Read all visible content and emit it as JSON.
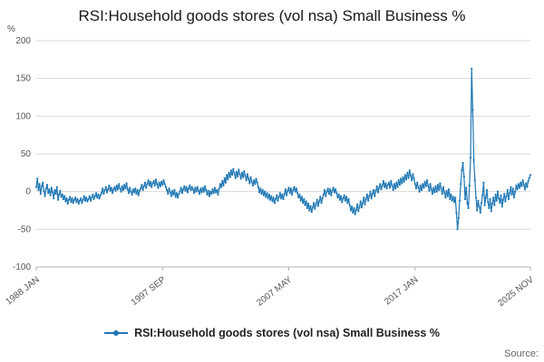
{
  "title": "RSI:Household goods stores (vol nsa) Small Business %",
  "unit_label": "%",
  "source_label": "Source:",
  "legend": {
    "label": "RSI:Household goods stores (vol nsa) Small Business %"
  },
  "colors": {
    "line": "#1f77b4",
    "grid": "#d9d9d9",
    "axis": "#b3b3b3",
    "tick_text": "#555555"
  },
  "chart_data": {
    "type": "line",
    "title": "RSI:Household goods stores (vol nsa) Small Business %",
    "xlabel": "",
    "ylabel": "%",
    "ylim": [
      -100,
      200
    ],
    "yticks": [
      -100,
      -50,
      0,
      50,
      100,
      150,
      200
    ],
    "grid": "horizontal",
    "legend_position": "bottom",
    "frequency": "monthly",
    "x_start": "1988 JAN",
    "x_end": "2025 NOV",
    "xticks": [
      {
        "index": 0,
        "label": "1988 JAN"
      },
      {
        "index": 116,
        "label": "1997 SEP"
      },
      {
        "index": 232,
        "label": "2007 MAY"
      },
      {
        "index": 348,
        "label": "2017 JAN"
      },
      {
        "index": 454,
        "label": "2025 NOV"
      }
    ],
    "series": [
      {
        "name": "RSI:Household goods stores (vol nsa) Small Business %",
        "values": [
          6,
          17,
          2,
          10,
          -3,
          7,
          12,
          1,
          -6,
          4,
          9,
          -2,
          3,
          -5,
          5,
          -1,
          -9,
          2,
          -3,
          6,
          -11,
          -4,
          1,
          -7,
          -4,
          -10,
          -6,
          -13,
          -9,
          -16,
          -11,
          -7,
          -14,
          -9,
          -15,
          -11,
          -8,
          -14,
          -10,
          -16,
          -12,
          -9,
          -15,
          -11,
          -6,
          -12,
          -8,
          -13,
          -10,
          -6,
          -12,
          -8,
          -4,
          -10,
          -6,
          -2,
          -8,
          -4,
          -9,
          -5,
          -2,
          4,
          -3,
          2,
          6,
          -1,
          3,
          8,
          1,
          5,
          -2,
          3,
          6,
          1,
          8,
          3,
          10,
          4,
          0,
          7,
          2,
          9,
          4,
          11,
          3,
          -2,
          5,
          0,
          -4,
          3,
          -1,
          4,
          -3,
          2,
          -5,
          1,
          4,
          9,
          2,
          7,
          12,
          5,
          10,
          15,
          8,
          13,
          6,
          11,
          14,
          8,
          16,
          10,
          5,
          12,
          7,
          13,
          9,
          15,
          10,
          6,
          2,
          -3,
          4,
          -1,
          -6,
          1,
          -4,
          2,
          -7,
          -2,
          -8,
          -3,
          0,
          5,
          -2,
          3,
          7,
          1,
          6,
          -1,
          4,
          8,
          2,
          6,
          3,
          -2,
          5,
          0,
          6,
          1,
          -3,
          4,
          -1,
          5,
          0,
          7,
          2,
          -4,
          1,
          -6,
          0,
          -3,
          3,
          -2,
          5,
          -1,
          2,
          -4,
          4,
          10,
          6,
          14,
          8,
          18,
          12,
          22,
          16,
          25,
          19,
          28,
          22,
          30,
          24,
          18,
          26,
          20,
          29,
          23,
          17,
          25,
          19,
          27,
          21,
          15,
          23,
          17,
          11,
          19,
          13,
          8,
          15,
          10,
          17,
          12,
          6,
          -1,
          4,
          -3,
          2,
          -5,
          0,
          -7,
          -2,
          -9,
          -4,
          -11,
          -6,
          -13,
          -8,
          -15,
          -10,
          -5,
          -12,
          -7,
          -2,
          -9,
          -4,
          -10,
          -3,
          3,
          -5,
          1,
          5,
          -2,
          4,
          -4,
          2,
          6,
          0,
          4,
          -2,
          -8,
          -4,
          -12,
          -7,
          -15,
          -10,
          -18,
          -13,
          -22,
          -16,
          -25,
          -19,
          -27,
          -21,
          -15,
          -23,
          -17,
          -11,
          -19,
          -13,
          -7,
          -15,
          -9,
          -4,
          2,
          -6,
          0,
          4,
          -3,
          3,
          -5,
          1,
          5,
          -1,
          3,
          -2,
          -8,
          -4,
          -11,
          -6,
          -14,
          -9,
          -5,
          -12,
          -7,
          -15,
          -10,
          -18,
          -25,
          -20,
          -28,
          -22,
          -30,
          -24,
          -17,
          -26,
          -20,
          -13,
          -21,
          -15,
          -8,
          -17,
          -10,
          -4,
          -12,
          -6,
          0,
          -9,
          -3,
          2,
          -6,
          1,
          7,
          -1,
          5,
          10,
          3,
          8,
          14,
          6,
          11,
          4,
          9,
          12,
          5,
          14,
          8,
          2,
          10,
          4,
          12,
          6,
          15,
          9,
          17,
          11,
          19,
          13,
          22,
          16,
          25,
          18,
          28,
          21,
          15,
          23,
          17,
          10,
          4,
          12,
          6,
          0,
          8,
          2,
          10,
          5,
          13,
          7,
          15,
          8,
          1,
          10,
          3,
          -3,
          5,
          -1,
          7,
          0,
          9,
          2,
          11,
          4,
          -3,
          6,
          -1,
          -8,
          1,
          -6,
          3,
          -10,
          -4,
          -12,
          -7,
          -14,
          -8,
          -28,
          -50,
          -35,
          -12,
          10,
          28,
          38,
          20,
          -10,
          5,
          -15,
          -22,
          8,
          45,
          163,
          108,
          42,
          15,
          -8,
          -25,
          -12,
          -20,
          -28,
          -15,
          -5,
          12,
          -18,
          -8,
          2,
          -14,
          -22,
          -10,
          -26,
          -16,
          -8,
          -18,
          -4,
          -12,
          0,
          -9,
          -15,
          -5,
          -20,
          -11,
          -3,
          -13,
          -6,
          2,
          -10,
          -2,
          6,
          -4,
          4,
          -8,
          0,
          8,
          3,
          10,
          5,
          12,
          7,
          15,
          9,
          3,
          11,
          6,
          14,
          18,
          22
        ]
      }
    ]
  }
}
